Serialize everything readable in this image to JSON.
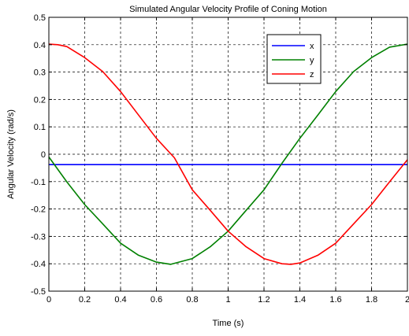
{
  "chart_data": {
    "type": "line",
    "title": "Simulated Angular Velocity Profile of Coning Motion",
    "xlabel": "Time (s)",
    "ylabel": "Angular Velocity (rad/s)",
    "xlim": [
      0,
      2
    ],
    "ylim": [
      -0.5,
      0.5
    ],
    "x_ticks": [
      0,
      0.2,
      0.4,
      0.6,
      0.8,
      1,
      1.2,
      1.4,
      1.6,
      1.8,
      2
    ],
    "x_tick_labels": [
      "0",
      "0.2",
      "0.4",
      "0.6",
      "0.8",
      "1",
      "1.2",
      "1.4",
      "1.6",
      "1.8",
      "2"
    ],
    "y_ticks": [
      -0.5,
      -0.4,
      -0.3,
      -0.2,
      -0.1,
      0,
      0.1,
      0.2,
      0.3,
      0.4,
      0.5
    ],
    "y_tick_labels": [
      "-0.5",
      "-0.4",
      "-0.3",
      "-0.2",
      "-0.1",
      "0",
      "0.1",
      "0.2",
      "0.3",
      "0.4",
      "0.5"
    ],
    "grid": true,
    "legend_position": "top-right",
    "series": [
      {
        "name": "x",
        "color": "#0000ff",
        "x": [
          0,
          2
        ],
        "y": [
          -0.038,
          -0.038
        ]
      },
      {
        "name": "y",
        "color": "#008000",
        "x": [
          0,
          0.1,
          0.2,
          0.3,
          0.4,
          0.5,
          0.6,
          0.68,
          0.8,
          0.9,
          1.0,
          1.1,
          1.2,
          1.3,
          1.4,
          1.5,
          1.6,
          1.7,
          1.8,
          1.9,
          2.0
        ],
        "y": [
          -0.01,
          -0.101,
          -0.184,
          -0.254,
          -0.325,
          -0.369,
          -0.394,
          -0.402,
          -0.381,
          -0.338,
          -0.281,
          -0.205,
          -0.13,
          -0.033,
          0.058,
          0.143,
          0.229,
          0.302,
          0.353,
          0.391,
          0.402
        ]
      },
      {
        "name": "z",
        "color": "#ff0000",
        "x": [
          0,
          0.05,
          0.1,
          0.2,
          0.3,
          0.4,
          0.5,
          0.6,
          0.7,
          0.8,
          0.9,
          1.0,
          1.1,
          1.2,
          1.3,
          1.35,
          1.4,
          1.5,
          1.6,
          1.7,
          1.8,
          1.9,
          2.0
        ],
        "y": [
          0.402,
          0.4,
          0.393,
          0.353,
          0.302,
          0.229,
          0.143,
          0.058,
          -0.013,
          -0.13,
          -0.205,
          -0.281,
          -0.338,
          -0.381,
          -0.4,
          -0.402,
          -0.397,
          -0.369,
          -0.325,
          -0.254,
          -0.184,
          -0.101,
          -0.02
        ]
      }
    ]
  }
}
